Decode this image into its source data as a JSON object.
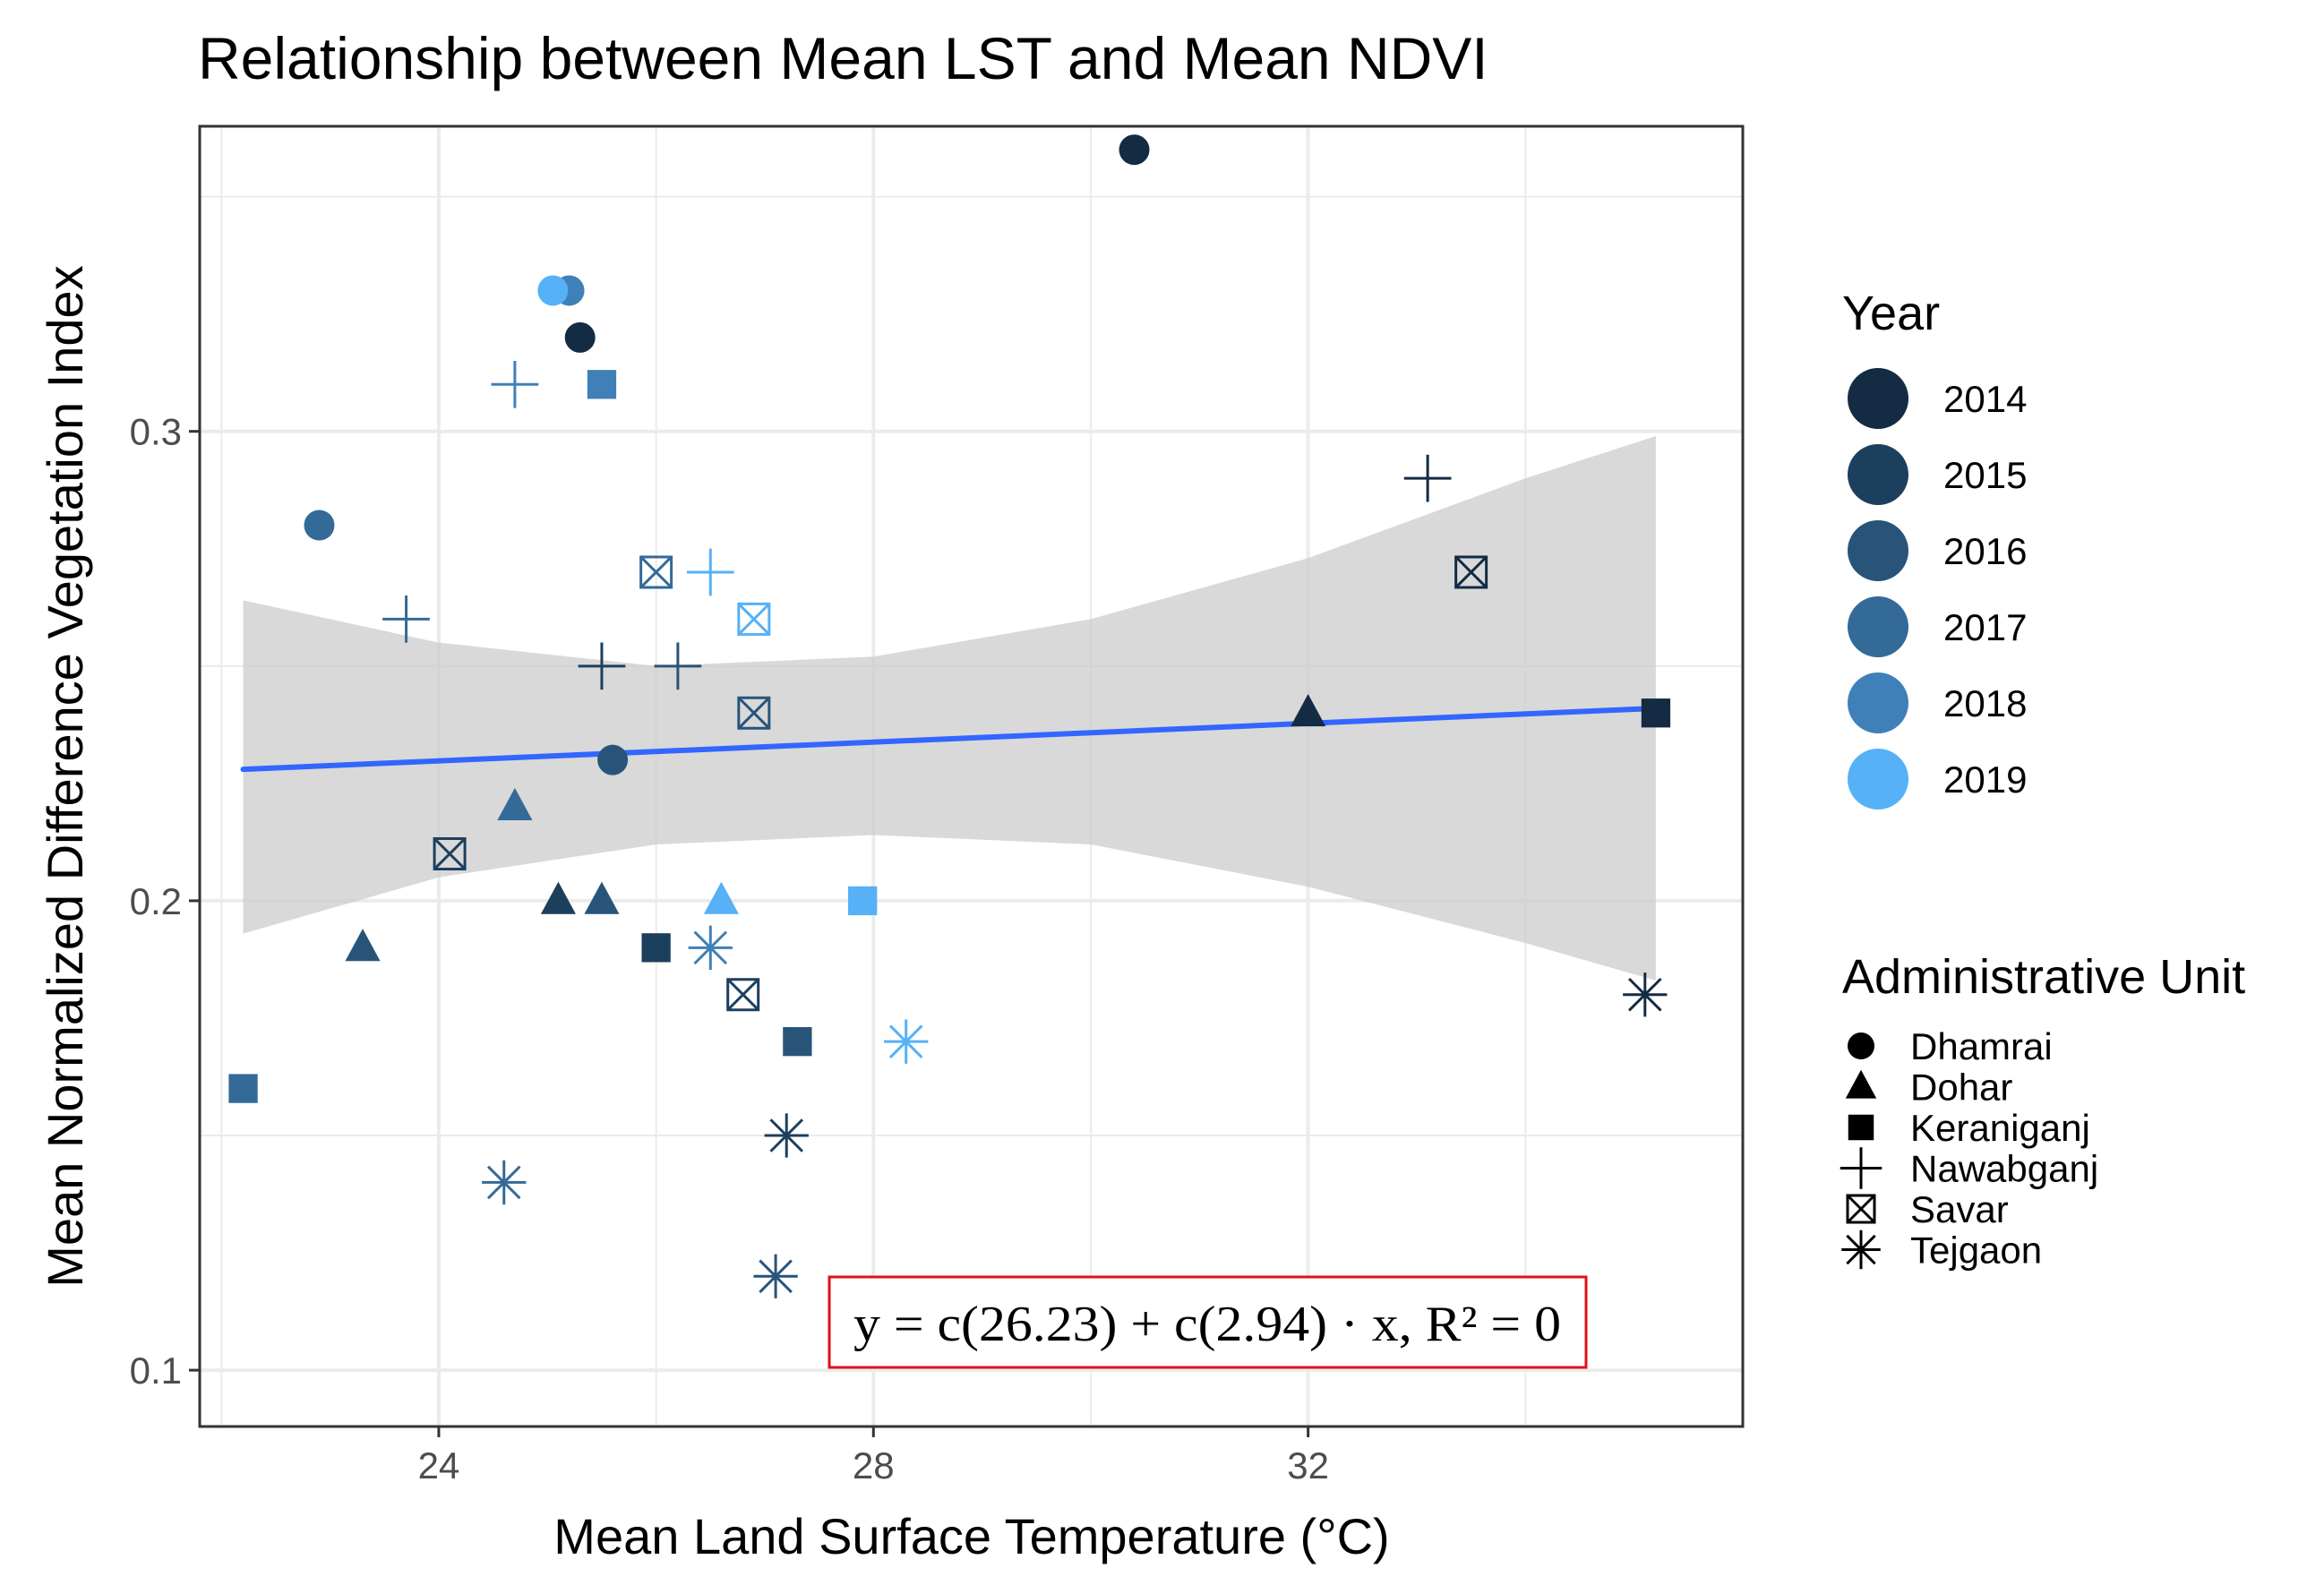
{
  "chart_data": {
    "type": "scatter",
    "title": "Relationship between Mean LST and Mean NDVI",
    "xlabel": "Mean Land Surface Temperature (°C)",
    "ylabel": "Mean Normalized Difference Vegetation Index",
    "xlim": [
      21.8,
      36.0
    ],
    "ylim": [
      0.088,
      0.365
    ],
    "xticks": [
      24,
      28,
      32
    ],
    "xtick_labels": [
      "24",
      "28",
      "32"
    ],
    "yticks": [
      0.1,
      0.2,
      0.3
    ],
    "ytick_labels": [
      "0.1",
      "0.2",
      "0.3"
    ],
    "grid": true,
    "legend_position": "right",
    "color_legend": {
      "title": "Year",
      "entries": [
        {
          "label": "2014",
          "color": "#132B43"
        },
        {
          "label": "2015",
          "color": "#1D3F5E"
        },
        {
          "label": "2016",
          "color": "#28547A"
        },
        {
          "label": "2017",
          "color": "#336A98"
        },
        {
          "label": "2018",
          "color": "#3F80B8"
        },
        {
          "label": "2019",
          "color": "#56B1F7"
        }
      ]
    },
    "shape_legend": {
      "title": "Administrative Unit",
      "entries": [
        {
          "label": "Dhamrai",
          "shape": "circle"
        },
        {
          "label": "Dohar",
          "shape": "triangle"
        },
        {
          "label": "Keraniganj",
          "shape": "square"
        },
        {
          "label": "Nawabganj",
          "shape": "plus"
        },
        {
          "label": "Savar",
          "shape": "boxx"
        },
        {
          "label": "Tejgaon",
          "shape": "asterisk"
        }
      ]
    },
    "points": [
      {
        "unit": "Dhamrai",
        "year": "2014",
        "x": 30.4,
        "y": 0.36
      },
      {
        "unit": "Dhamrai",
        "year": "2014",
        "x": 25.3,
        "y": 0.32
      },
      {
        "unit": "Dhamrai",
        "year": "2018",
        "x": 25.2,
        "y": 0.33
      },
      {
        "unit": "Dhamrai",
        "year": "2019",
        "x": 25.05,
        "y": 0.33
      },
      {
        "unit": "Dhamrai",
        "year": "2017",
        "x": 22.9,
        "y": 0.28
      },
      {
        "unit": "Dhamrai",
        "year": "2016",
        "x": 25.6,
        "y": 0.23
      },
      {
        "unit": "Dohar",
        "year": "2014",
        "x": 32.0,
        "y": 0.24
      },
      {
        "unit": "Dohar",
        "year": "2017",
        "x": 24.7,
        "y": 0.22
      },
      {
        "unit": "Dohar",
        "year": "2015",
        "x": 25.1,
        "y": 0.2
      },
      {
        "unit": "Dohar",
        "year": "2016",
        "x": 25.5,
        "y": 0.2
      },
      {
        "unit": "Dohar",
        "year": "2019",
        "x": 26.6,
        "y": 0.2
      },
      {
        "unit": "Dohar",
        "year": "2016",
        "x": 23.3,
        "y": 0.19
      },
      {
        "unit": "Keraniganj",
        "year": "2018",
        "x": 25.5,
        "y": 0.31
      },
      {
        "unit": "Keraniganj",
        "year": "2014",
        "x": 35.2,
        "y": 0.24
      },
      {
        "unit": "Keraniganj",
        "year": "2019",
        "x": 27.9,
        "y": 0.2
      },
      {
        "unit": "Keraniganj",
        "year": "2015",
        "x": 26.0,
        "y": 0.19
      },
      {
        "unit": "Keraniganj",
        "year": "2016",
        "x": 27.3,
        "y": 0.17
      },
      {
        "unit": "Keraniganj",
        "year": "2017",
        "x": 22.2,
        "y": 0.16
      },
      {
        "unit": "Nawabganj",
        "year": "2018",
        "x": 24.7,
        "y": 0.31
      },
      {
        "unit": "Nawabganj",
        "year": "2014",
        "x": 33.1,
        "y": 0.29
      },
      {
        "unit": "Nawabganj",
        "year": "2019",
        "x": 26.5,
        "y": 0.27
      },
      {
        "unit": "Nawabganj",
        "year": "2017",
        "x": 23.7,
        "y": 0.26
      },
      {
        "unit": "Nawabganj",
        "year": "2015",
        "x": 25.5,
        "y": 0.25
      },
      {
        "unit": "Nawabganj",
        "year": "2016",
        "x": 26.2,
        "y": 0.25
      },
      {
        "unit": "Savar",
        "year": "2014",
        "x": 33.5,
        "y": 0.27
      },
      {
        "unit": "Savar",
        "year": "2017",
        "x": 26.0,
        "y": 0.27
      },
      {
        "unit": "Savar",
        "year": "2019",
        "x": 26.9,
        "y": 0.26
      },
      {
        "unit": "Savar",
        "year": "2016",
        "x": 26.9,
        "y": 0.24
      },
      {
        "unit": "Savar",
        "year": "2015",
        "x": 24.1,
        "y": 0.21
      },
      {
        "unit": "Savar",
        "year": "2015",
        "x": 26.8,
        "y": 0.18
      },
      {
        "unit": "Tejgaon",
        "year": "2018",
        "x": 26.5,
        "y": 0.19
      },
      {
        "unit": "Tejgaon",
        "year": "2014",
        "x": 35.1,
        "y": 0.18
      },
      {
        "unit": "Tejgaon",
        "year": "2019",
        "x": 28.3,
        "y": 0.17
      },
      {
        "unit": "Tejgaon",
        "year": "2015",
        "x": 27.2,
        "y": 0.15
      },
      {
        "unit": "Tejgaon",
        "year": "2017",
        "x": 24.6,
        "y": 0.14
      },
      {
        "unit": "Tejgaon",
        "year": "2016",
        "x": 27.1,
        "y": 0.12
      }
    ],
    "trend_line": {
      "color": "#3366FF",
      "x": [
        22.2,
        35.2
      ],
      "y": [
        0.228,
        0.241
      ],
      "ci_x": [
        22.2,
        24.0,
        26.0,
        28.0,
        30.0,
        32.0,
        34.0,
        35.2
      ],
      "ci_upper": [
        0.264,
        0.255,
        0.25,
        0.252,
        0.26,
        0.273,
        0.29,
        0.299
      ],
      "ci_lower": [
        0.193,
        0.205,
        0.212,
        0.214,
        0.212,
        0.203,
        0.191,
        0.183
      ],
      "ci_color": "#cccccc"
    },
    "annotation": {
      "text": "y = c(26.23) + c(2.94) · x,  R² = 0",
      "border_color": "#e0101a"
    }
  }
}
